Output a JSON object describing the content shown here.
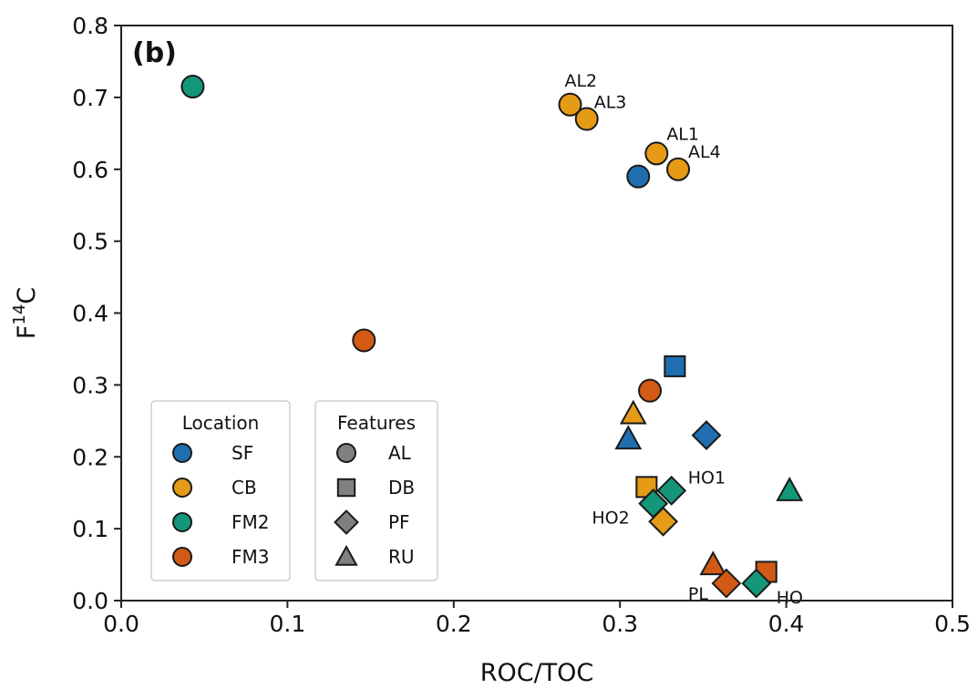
{
  "chart_data": {
    "type": "scatter",
    "panel_label": "(b)",
    "xlabel": "ROC/TOC",
    "ylabel_main": "F",
    "ylabel_superscript": "14",
    "ylabel_suffix": "C",
    "xlim": [
      0.0,
      0.5
    ],
    "ylim": [
      0.0,
      0.8
    ],
    "x_ticks": [
      0.0,
      0.1,
      0.2,
      0.3,
      0.4,
      0.5
    ],
    "x_tick_labels": [
      "0.0",
      "0.1",
      "0.2",
      "0.3",
      "0.4",
      "0.5"
    ],
    "y_ticks": [
      0.0,
      0.1,
      0.2,
      0.3,
      0.4,
      0.5,
      0.6,
      0.7,
      0.8
    ],
    "y_tick_labels": [
      "0.0",
      "0.1",
      "0.2",
      "0.3",
      "0.4",
      "0.5",
      "0.6",
      "0.7",
      "0.8"
    ],
    "grid": false,
    "location_colors": {
      "SF": "#1f6fb0",
      "CB": "#e69b16",
      "FM2": "#13967a",
      "FM3": "#d35a14"
    },
    "feature_markers": {
      "AL": "circle",
      "DB": "square",
      "PF": "diamond",
      "RU": "triangle"
    },
    "legends": [
      {
        "title": "Location",
        "placement": "lower-left",
        "entries": [
          {
            "label": "SF",
            "color": "#1f6fb0"
          },
          {
            "label": "CB",
            "color": "#e69b16"
          },
          {
            "label": "FM2",
            "color": "#13967a"
          },
          {
            "label": "FM3",
            "color": "#d35a14"
          }
        ]
      },
      {
        "title": "Features",
        "placement": "lower-left",
        "entries": [
          {
            "label": "AL",
            "marker": "circle"
          },
          {
            "label": "DB",
            "marker": "square"
          },
          {
            "label": "PF",
            "marker": "diamond"
          },
          {
            "label": "RU",
            "marker": "triangle"
          }
        ]
      }
    ],
    "points": [
      {
        "x": 0.043,
        "y": 0.715,
        "location": "FM2",
        "feature": "AL",
        "label": ""
      },
      {
        "x": 0.146,
        "y": 0.362,
        "location": "FM3",
        "feature": "AL",
        "label": ""
      },
      {
        "x": 0.27,
        "y": 0.69,
        "location": "CB",
        "feature": "AL",
        "label": "AL2"
      },
      {
        "x": 0.28,
        "y": 0.67,
        "location": "CB",
        "feature": "AL",
        "label": "AL3"
      },
      {
        "x": 0.311,
        "y": 0.59,
        "location": "SF",
        "feature": "AL",
        "label": ""
      },
      {
        "x": 0.322,
        "y": 0.622,
        "location": "CB",
        "feature": "AL",
        "label": "AL1"
      },
      {
        "x": 0.335,
        "y": 0.6,
        "location": "CB",
        "feature": "AL",
        "label": "AL4"
      },
      {
        "x": 0.318,
        "y": 0.292,
        "location": "FM3",
        "feature": "AL",
        "label": ""
      },
      {
        "x": 0.333,
        "y": 0.326,
        "location": "SF",
        "feature": "DB",
        "label": ""
      },
      {
        "x": 0.352,
        "y": 0.23,
        "location": "SF",
        "feature": "PF",
        "label": ""
      },
      {
        "x": 0.308,
        "y": 0.26,
        "location": "CB",
        "feature": "RU",
        "label": ""
      },
      {
        "x": 0.305,
        "y": 0.225,
        "location": "SF",
        "feature": "RU",
        "label": ""
      },
      {
        "x": 0.316,
        "y": 0.158,
        "location": "CB",
        "feature": "DB",
        "label": ""
      },
      {
        "x": 0.331,
        "y": 0.153,
        "location": "FM2",
        "feature": "PF",
        "label": "HO1"
      },
      {
        "x": 0.32,
        "y": 0.135,
        "location": "FM2",
        "feature": "PF",
        "label": "HO2"
      },
      {
        "x": 0.326,
        "y": 0.11,
        "location": "CB",
        "feature": "PF",
        "label": ""
      },
      {
        "x": 0.402,
        "y": 0.153,
        "location": "FM2",
        "feature": "RU",
        "label": ""
      },
      {
        "x": 0.356,
        "y": 0.05,
        "location": "FM3",
        "feature": "RU",
        "label": ""
      },
      {
        "x": 0.388,
        "y": 0.04,
        "location": "FM3",
        "feature": "DB",
        "label": ""
      },
      {
        "x": 0.364,
        "y": 0.024,
        "location": "FM3",
        "feature": "PF",
        "label": "PL"
      },
      {
        "x": 0.382,
        "y": 0.024,
        "location": "FM2",
        "feature": "PF",
        "label": "HO"
      }
    ]
  }
}
